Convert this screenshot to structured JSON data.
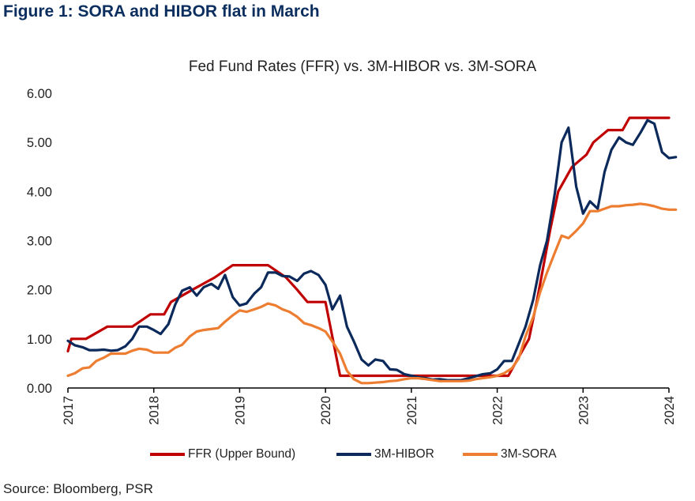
{
  "figure_title": "Figure 1: SORA and HIBOR flat in March",
  "source": "Source: Bloomberg, PSR",
  "chart_data": {
    "type": "line",
    "title": "Fed Fund Rates (FFR) vs. 3M-HIBOR vs. 3M-SORA",
    "xlabel": "",
    "ylabel": "",
    "ylim": [
      0,
      6
    ],
    "xlim": [
      2017,
      2024
    ],
    "yticks": [
      "0.00",
      "1.00",
      "2.00",
      "3.00",
      "4.00",
      "5.00",
      "6.00"
    ],
    "xticks": [
      "2017",
      "2018",
      "2019",
      "2020",
      "2021",
      "2022",
      "2023",
      "2024"
    ],
    "grid": false,
    "legend_position": "bottom",
    "series": [
      {
        "name": "FFR (Upper Bound)",
        "color": "#c00000",
        "points": [
          [
            2017.0,
            0.75
          ],
          [
            2017.04,
            1.0
          ],
          [
            2017.17,
            1.0
          ],
          [
            2017.21,
            1.0
          ],
          [
            2017.46,
            1.25
          ],
          [
            2017.67,
            1.25
          ],
          [
            2017.75,
            1.25
          ],
          [
            2017.96,
            1.5
          ],
          [
            2018.12,
            1.5
          ],
          [
            2018.2,
            1.75
          ],
          [
            2018.45,
            2.0
          ],
          [
            2018.71,
            2.25
          ],
          [
            2018.92,
            2.5
          ],
          [
            2019.0,
            2.5
          ],
          [
            2019.33,
            2.5
          ],
          [
            2019.54,
            2.25
          ],
          [
            2019.67,
            2.0
          ],
          [
            2019.79,
            1.75
          ],
          [
            2019.88,
            1.75
          ],
          [
            2020.0,
            1.75
          ],
          [
            2020.17,
            0.25
          ],
          [
            2020.5,
            0.25
          ],
          [
            2021.0,
            0.25
          ],
          [
            2021.5,
            0.25
          ],
          [
            2021.8,
            0.25
          ],
          [
            2022.13,
            0.25
          ],
          [
            2022.21,
            0.5
          ],
          [
            2022.37,
            1.0
          ],
          [
            2022.46,
            1.75
          ],
          [
            2022.54,
            2.5
          ],
          [
            2022.62,
            3.25
          ],
          [
            2022.71,
            4.0
          ],
          [
            2022.87,
            4.5
          ],
          [
            2023.04,
            4.75
          ],
          [
            2023.12,
            5.0
          ],
          [
            2023.29,
            5.25
          ],
          [
            2023.46,
            5.25
          ],
          [
            2023.54,
            5.5
          ],
          [
            2023.75,
            5.5
          ],
          [
            2024.0,
            5.5
          ]
        ]
      },
      {
        "name": "3M-HIBOR",
        "color": "#0b2a5b",
        "points": [
          [
            2017.0,
            0.96
          ],
          [
            2017.08,
            0.87
          ],
          [
            2017.17,
            0.83
          ],
          [
            2017.25,
            0.77
          ],
          [
            2017.33,
            0.77
          ],
          [
            2017.42,
            0.78
          ],
          [
            2017.5,
            0.76
          ],
          [
            2017.58,
            0.77
          ],
          [
            2017.67,
            0.85
          ],
          [
            2017.75,
            1.0
          ],
          [
            2017.83,
            1.25
          ],
          [
            2017.92,
            1.25
          ],
          [
            2018.0,
            1.18
          ],
          [
            2018.08,
            1.1
          ],
          [
            2018.17,
            1.3
          ],
          [
            2018.25,
            1.7
          ],
          [
            2018.33,
            1.98
          ],
          [
            2018.42,
            2.05
          ],
          [
            2018.5,
            1.88
          ],
          [
            2018.58,
            2.05
          ],
          [
            2018.67,
            2.12
          ],
          [
            2018.75,
            2.02
          ],
          [
            2018.83,
            2.3
          ],
          [
            2018.92,
            1.85
          ],
          [
            2019.0,
            1.68
          ],
          [
            2019.08,
            1.72
          ],
          [
            2019.17,
            1.92
          ],
          [
            2019.25,
            2.05
          ],
          [
            2019.33,
            2.35
          ],
          [
            2019.42,
            2.35
          ],
          [
            2019.5,
            2.28
          ],
          [
            2019.58,
            2.27
          ],
          [
            2019.67,
            2.18
          ],
          [
            2019.75,
            2.33
          ],
          [
            2019.83,
            2.38
          ],
          [
            2019.92,
            2.3
          ],
          [
            2020.0,
            2.1
          ],
          [
            2020.08,
            1.6
          ],
          [
            2020.17,
            1.88
          ],
          [
            2020.25,
            1.25
          ],
          [
            2020.33,
            0.95
          ],
          [
            2020.42,
            0.58
          ],
          [
            2020.5,
            0.46
          ],
          [
            2020.58,
            0.58
          ],
          [
            2020.67,
            0.55
          ],
          [
            2020.75,
            0.38
          ],
          [
            2020.83,
            0.37
          ],
          [
            2020.92,
            0.28
          ],
          [
            2021.0,
            0.25
          ],
          [
            2021.08,
            0.22
          ],
          [
            2021.17,
            0.2
          ],
          [
            2021.25,
            0.17
          ],
          [
            2021.33,
            0.18
          ],
          [
            2021.42,
            0.16
          ],
          [
            2021.5,
            0.16
          ],
          [
            2021.58,
            0.16
          ],
          [
            2021.67,
            0.2
          ],
          [
            2021.75,
            0.24
          ],
          [
            2021.83,
            0.28
          ],
          [
            2021.92,
            0.3
          ],
          [
            2022.0,
            0.38
          ],
          [
            2022.08,
            0.55
          ],
          [
            2022.17,
            0.55
          ],
          [
            2022.25,
            0.9
          ],
          [
            2022.33,
            1.25
          ],
          [
            2022.42,
            1.8
          ],
          [
            2022.5,
            2.5
          ],
          [
            2022.58,
            3.0
          ],
          [
            2022.67,
            3.95
          ],
          [
            2022.75,
            5.0
          ],
          [
            2022.83,
            5.3
          ],
          [
            2022.92,
            4.1
          ],
          [
            2023.0,
            3.55
          ],
          [
            2023.08,
            3.8
          ],
          [
            2023.17,
            3.65
          ],
          [
            2023.25,
            4.4
          ],
          [
            2023.33,
            4.85
          ],
          [
            2023.42,
            5.1
          ],
          [
            2023.5,
            5.0
          ],
          [
            2023.58,
            4.95
          ],
          [
            2023.67,
            5.2
          ],
          [
            2023.75,
            5.45
          ],
          [
            2023.83,
            5.38
          ],
          [
            2023.92,
            4.8
          ],
          [
            2024.0,
            4.68
          ],
          [
            2024.08,
            4.7
          ]
        ]
      },
      {
        "name": "3M-SORA",
        "color": "#ed7d31",
        "points": [
          [
            2017.0,
            0.25
          ],
          [
            2017.08,
            0.3
          ],
          [
            2017.17,
            0.4
          ],
          [
            2017.25,
            0.42
          ],
          [
            2017.33,
            0.55
          ],
          [
            2017.42,
            0.62
          ],
          [
            2017.5,
            0.7
          ],
          [
            2017.58,
            0.7
          ],
          [
            2017.67,
            0.7
          ],
          [
            2017.75,
            0.76
          ],
          [
            2017.83,
            0.8
          ],
          [
            2017.92,
            0.78
          ],
          [
            2018.0,
            0.72
          ],
          [
            2018.08,
            0.72
          ],
          [
            2018.17,
            0.72
          ],
          [
            2018.25,
            0.82
          ],
          [
            2018.33,
            0.88
          ],
          [
            2018.42,
            1.05
          ],
          [
            2018.5,
            1.15
          ],
          [
            2018.58,
            1.18
          ],
          [
            2018.67,
            1.2
          ],
          [
            2018.75,
            1.22
          ],
          [
            2018.83,
            1.35
          ],
          [
            2018.92,
            1.48
          ],
          [
            2019.0,
            1.58
          ],
          [
            2019.08,
            1.55
          ],
          [
            2019.17,
            1.6
          ],
          [
            2019.25,
            1.65
          ],
          [
            2019.33,
            1.72
          ],
          [
            2019.42,
            1.68
          ],
          [
            2019.5,
            1.6
          ],
          [
            2019.58,
            1.55
          ],
          [
            2019.67,
            1.45
          ],
          [
            2019.75,
            1.32
          ],
          [
            2019.83,
            1.28
          ],
          [
            2019.92,
            1.22
          ],
          [
            2020.0,
            1.15
          ],
          [
            2020.08,
            0.95
          ],
          [
            2020.17,
            0.7
          ],
          [
            2020.25,
            0.35
          ],
          [
            2020.33,
            0.18
          ],
          [
            2020.42,
            0.1
          ],
          [
            2020.5,
            0.1
          ],
          [
            2020.58,
            0.11
          ],
          [
            2020.67,
            0.12
          ],
          [
            2020.75,
            0.14
          ],
          [
            2020.83,
            0.15
          ],
          [
            2020.92,
            0.18
          ],
          [
            2021.0,
            0.2
          ],
          [
            2021.08,
            0.2
          ],
          [
            2021.17,
            0.18
          ],
          [
            2021.25,
            0.16
          ],
          [
            2021.33,
            0.14
          ],
          [
            2021.42,
            0.14
          ],
          [
            2021.5,
            0.14
          ],
          [
            2021.58,
            0.14
          ],
          [
            2021.67,
            0.15
          ],
          [
            2021.75,
            0.18
          ],
          [
            2021.83,
            0.2
          ],
          [
            2021.92,
            0.22
          ],
          [
            2022.0,
            0.25
          ],
          [
            2022.08,
            0.3
          ],
          [
            2022.17,
            0.4
          ],
          [
            2022.25,
            0.6
          ],
          [
            2022.33,
            1.05
          ],
          [
            2022.42,
            1.45
          ],
          [
            2022.5,
            1.95
          ],
          [
            2022.58,
            2.35
          ],
          [
            2022.67,
            2.75
          ],
          [
            2022.75,
            3.1
          ],
          [
            2022.83,
            3.05
          ],
          [
            2022.92,
            3.2
          ],
          [
            2023.0,
            3.35
          ],
          [
            2023.08,
            3.6
          ],
          [
            2023.17,
            3.6
          ],
          [
            2023.25,
            3.65
          ],
          [
            2023.33,
            3.7
          ],
          [
            2023.42,
            3.7
          ],
          [
            2023.5,
            3.72
          ],
          [
            2023.58,
            3.73
          ],
          [
            2023.67,
            3.75
          ],
          [
            2023.75,
            3.73
          ],
          [
            2023.83,
            3.7
          ],
          [
            2023.92,
            3.65
          ],
          [
            2024.0,
            3.63
          ],
          [
            2024.08,
            3.63
          ]
        ]
      }
    ]
  }
}
